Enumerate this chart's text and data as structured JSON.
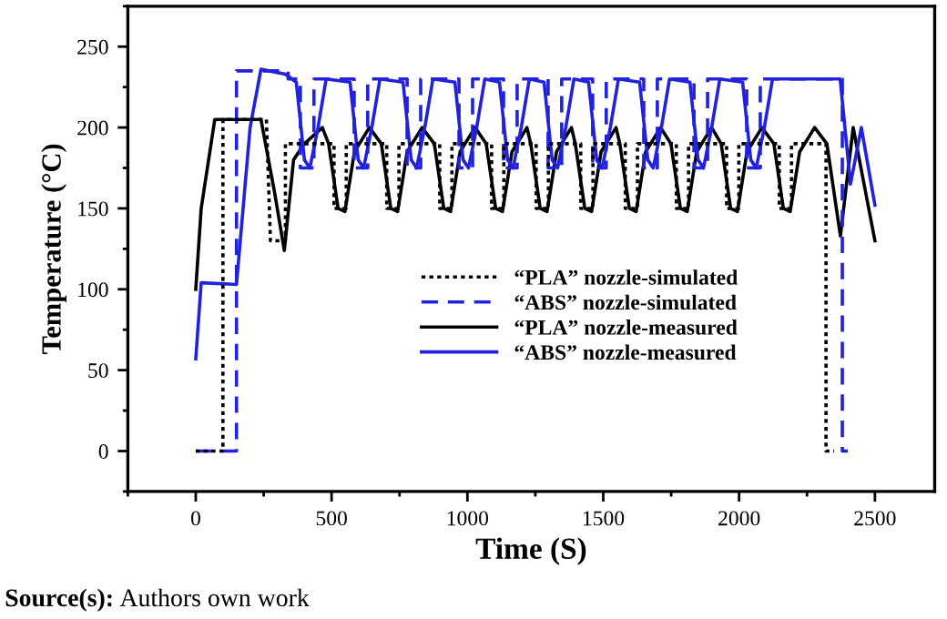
{
  "chart_data": {
    "type": "line",
    "xlabel": "Time (S)",
    "ylabel": "Temperature (°C)",
    "xlim": [
      -250,
      2720
    ],
    "ylim": [
      -25,
      275
    ],
    "xticks": [
      0,
      500,
      1000,
      1500,
      2000,
      2500
    ],
    "yticks": [
      0,
      50,
      100,
      150,
      200,
      250
    ],
    "grid": false,
    "legend": "center",
    "marker": "none",
    "annotations": [
      "Source(s): Authors own work"
    ],
    "series": [
      {
        "name": "“PLA” nozzle-simulated",
        "color": "#000000",
        "line_style": "dotted",
        "x": [
          0,
          100,
          100,
          260,
          275,
          330,
          330,
          509,
          509,
          554,
          554,
          703,
          703,
          748,
          748,
          898,
          898,
          943,
          943,
          1089,
          1089,
          1134,
          1134,
          1253,
          1253,
          1298,
          1298,
          1417,
          1417,
          1462,
          1462,
          1581,
          1581,
          1626,
          1626,
          1769,
          1769,
          1814,
          1814,
          1954,
          1954,
          1999,
          1999,
          2148,
          2148,
          2193,
          2193,
          2320,
          2320,
          2350
        ],
        "values": [
          0,
          0,
          205,
          205,
          130,
          130,
          190,
          190,
          150,
          150,
          190,
          190,
          150,
          150,
          190,
          190,
          150,
          150,
          190,
          190,
          150,
          150,
          190,
          190,
          150,
          150,
          190,
          190,
          150,
          150,
          190,
          190,
          150,
          150,
          190,
          190,
          150,
          150,
          190,
          190,
          150,
          150,
          190,
          190,
          150,
          150,
          190,
          190,
          0,
          0
        ]
      },
      {
        "name": "“ABS” nozzle-simulated",
        "color": "#2222dd",
        "line_style": "dashed",
        "x": [
          0,
          150,
          150,
          340,
          340,
          385,
          385,
          435,
          435,
          583,
          583,
          633,
          633,
          778,
          778,
          828,
          828,
          969,
          969,
          1019,
          1019,
          1133,
          1133,
          1183,
          1183,
          1297,
          1297,
          1347,
          1347,
          1461,
          1461,
          1511,
          1511,
          1649,
          1649,
          1699,
          1699,
          1834,
          1834,
          1884,
          1884,
          2028,
          2028,
          2078,
          2078,
          2380,
          2380,
          2400
        ],
        "values": [
          0,
          0,
          235,
          235,
          230,
          230,
          175,
          175,
          230,
          230,
          175,
          175,
          230,
          230,
          175,
          175,
          230,
          230,
          175,
          175,
          230,
          230,
          175,
          175,
          230,
          230,
          175,
          175,
          230,
          230,
          175,
          175,
          230,
          230,
          175,
          175,
          230,
          230,
          175,
          175,
          230,
          230,
          175,
          175,
          230,
          230,
          0,
          0
        ]
      },
      {
        "name": "“PLA” nozzle-measured",
        "color": "#000000",
        "line_style": "solid",
        "x": [
          0,
          20,
          70,
          100,
          240,
          290,
          326,
          360,
          400,
          466,
          489,
          524,
          549,
          584,
          639,
          683,
          718,
          743,
          778,
          833,
          878,
          913,
          938,
          973,
          1028,
          1069,
          1104,
          1129,
          1164,
          1219,
          1233,
          1268,
          1293,
          1328,
          1383,
          1397,
          1432,
          1457,
          1492,
          1547,
          1561,
          1596,
          1621,
          1656,
          1711,
          1749,
          1784,
          1809,
          1844,
          1899,
          1934,
          1969,
          1994,
          2029,
          2084,
          2128,
          2163,
          2188,
          2223,
          2278,
          2323,
          2373,
          2420,
          2460,
          2500
        ],
        "values": [
          100,
          150,
          205,
          205,
          205,
          160,
          124,
          180,
          190,
          200,
          190,
          150,
          148,
          185,
          200,
          190,
          150,
          148,
          185,
          200,
          190,
          150,
          148,
          185,
          200,
          190,
          150,
          148,
          185,
          200,
          190,
          150,
          148,
          185,
          200,
          190,
          150,
          148,
          185,
          200,
          190,
          150,
          148,
          185,
          200,
          190,
          150,
          148,
          185,
          200,
          190,
          150,
          148,
          185,
          200,
          190,
          150,
          148,
          185,
          200,
          190,
          133,
          200,
          165,
          130
        ]
      },
      {
        "name": "“ABS” nozzle-measured",
        "color": "#2222dd",
        "line_style": "solid",
        "x": [
          0,
          20,
          150,
          200,
          240,
          330,
          370,
          400,
          420,
          450,
          480,
          568,
          598,
          618,
          648,
          678,
          763,
          793,
          813,
          843,
          873,
          954,
          984,
          1004,
          1034,
          1064,
          1118,
          1148,
          1168,
          1198,
          1228,
          1282,
          1312,
          1332,
          1362,
          1392,
          1446,
          1476,
          1496,
          1526,
          1556,
          1634,
          1664,
          1684,
          1714,
          1744,
          1819,
          1849,
          1869,
          1899,
          1929,
          2013,
          2043,
          2063,
          2093,
          2123,
          2372,
          2410,
          2450,
          2500
        ],
        "values": [
          57,
          104,
          103,
          200,
          236,
          233,
          228,
          180,
          175,
          200,
          230,
          228,
          180,
          175,
          200,
          230,
          228,
          180,
          175,
          200,
          230,
          228,
          180,
          175,
          200,
          230,
          228,
          180,
          175,
          200,
          230,
          228,
          180,
          175,
          200,
          230,
          228,
          180,
          175,
          200,
          230,
          228,
          180,
          175,
          200,
          230,
          228,
          180,
          175,
          200,
          230,
          228,
          180,
          175,
          200,
          230,
          230,
          165,
          200,
          152
        ]
      }
    ]
  }
}
